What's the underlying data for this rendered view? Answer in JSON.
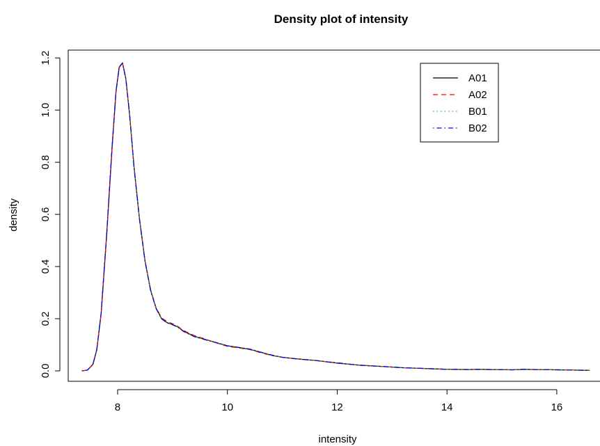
{
  "chart_data": {
    "type": "line",
    "title": "Density plot of intensity",
    "xlabel": "intensity",
    "ylabel": "density",
    "xlim": [
      7.1,
      16.8
    ],
    "ylim": [
      -0.04,
      1.23
    ],
    "xticks": [
      8,
      10,
      12,
      14,
      16
    ],
    "xtick_labels": [
      "8",
      "10",
      "12",
      "14",
      "16"
    ],
    "yticks": [
      0.0,
      0.2,
      0.4,
      0.6,
      0.8,
      1.0,
      1.2
    ],
    "ytick_labels": [
      "0.0",
      "0.2",
      "0.4",
      "0.6",
      "0.8",
      "1.0",
      "1.2"
    ],
    "grid": false,
    "legend_position": "top-right",
    "x": [
      7.35,
      7.45,
      7.55,
      7.62,
      7.7,
      7.8,
      7.9,
      7.97,
      8.03,
      8.09,
      8.15,
      8.22,
      8.3,
      8.4,
      8.5,
      8.6,
      8.7,
      8.8,
      8.9,
      9.0,
      9.1,
      9.2,
      9.4,
      9.6,
      9.8,
      10.0,
      10.2,
      10.4,
      10.6,
      10.8,
      11.0,
      11.3,
      11.6,
      12.0,
      12.4,
      12.8,
      13.2,
      13.6,
      14.0,
      14.4,
      14.6,
      14.8,
      15.2,
      15.4,
      15.6,
      16.0,
      16.3,
      16.6
    ],
    "series": [
      {
        "name": "A01",
        "color": "#000000",
        "dash": "solid",
        "values": [
          0.0,
          0.003,
          0.025,
          0.08,
          0.22,
          0.52,
          0.86,
          1.07,
          1.165,
          1.18,
          1.12,
          0.98,
          0.78,
          0.58,
          0.42,
          0.31,
          0.24,
          0.2,
          0.185,
          0.178,
          0.168,
          0.152,
          0.132,
          0.12,
          0.108,
          0.096,
          0.09,
          0.083,
          0.072,
          0.06,
          0.052,
          0.045,
          0.04,
          0.03,
          0.022,
          0.017,
          0.012,
          0.009,
          0.006,
          0.005,
          0.006,
          0.005,
          0.004,
          0.006,
          0.005,
          0.004,
          0.003,
          0.002
        ]
      },
      {
        "name": "A02",
        "color": "#ff0000",
        "dash": "dashed",
        "values": [
          0.0,
          0.003,
          0.024,
          0.079,
          0.218,
          0.518,
          0.858,
          1.068,
          1.163,
          1.178,
          1.118,
          0.978,
          0.782,
          0.582,
          0.423,
          0.312,
          0.243,
          0.203,
          0.189,
          0.181,
          0.17,
          0.155,
          0.135,
          0.122,
          0.107,
          0.094,
          0.088,
          0.082,
          0.07,
          0.059,
          0.052,
          0.046,
          0.04,
          0.031,
          0.022,
          0.017,
          0.012,
          0.009,
          0.006,
          0.005,
          0.006,
          0.005,
          0.004,
          0.006,
          0.005,
          0.004,
          0.003,
          0.002
        ]
      },
      {
        "name": "B01",
        "color": "#00cd00",
        "dash": "dotted",
        "values": [
          0.0,
          0.003,
          0.025,
          0.08,
          0.219,
          0.519,
          0.859,
          1.069,
          1.164,
          1.179,
          1.119,
          0.979,
          0.781,
          0.581,
          0.421,
          0.311,
          0.241,
          0.201,
          0.186,
          0.179,
          0.169,
          0.153,
          0.133,
          0.121,
          0.108,
          0.095,
          0.089,
          0.083,
          0.071,
          0.06,
          0.052,
          0.045,
          0.04,
          0.03,
          0.022,
          0.017,
          0.012,
          0.009,
          0.006,
          0.005,
          0.006,
          0.005,
          0.004,
          0.006,
          0.005,
          0.004,
          0.003,
          0.002
        ]
      },
      {
        "name": "B02",
        "color": "#0000ff",
        "dash": "dotdash",
        "values": [
          0.0,
          0.003,
          0.025,
          0.081,
          0.221,
          0.521,
          0.861,
          1.071,
          1.166,
          1.181,
          1.121,
          0.981,
          0.779,
          0.579,
          0.419,
          0.309,
          0.239,
          0.199,
          0.184,
          0.177,
          0.167,
          0.151,
          0.131,
          0.119,
          0.108,
          0.096,
          0.09,
          0.084,
          0.072,
          0.061,
          0.052,
          0.045,
          0.04,
          0.03,
          0.022,
          0.017,
          0.012,
          0.009,
          0.006,
          0.005,
          0.006,
          0.005,
          0.004,
          0.006,
          0.005,
          0.004,
          0.003,
          0.002
        ]
      }
    ]
  }
}
